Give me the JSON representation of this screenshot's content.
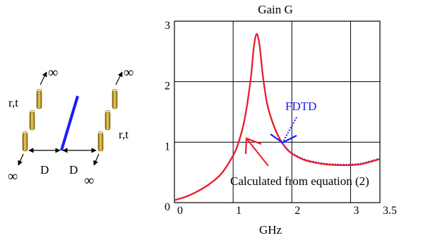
{
  "chart_data": {
    "type": "line",
    "title": "Gain G",
    "xlabel": "GHz",
    "ylabel": "",
    "xlim": [
      0,
      3.5
    ],
    "ylim": [
      0,
      3
    ],
    "xticks": [
      0,
      1,
      2,
      3,
      3.5
    ],
    "yticks": [
      0,
      1,
      2,
      3
    ],
    "grid": true,
    "series": [
      {
        "name": "FDTD",
        "color": "#1a1aff",
        "style": "dotted",
        "x": [
          0,
          0.2,
          0.4,
          0.6,
          0.8,
          1.0,
          1.1,
          1.2,
          1.3,
          1.35,
          1.4,
          1.45,
          1.5,
          1.55,
          1.6,
          1.7,
          1.8,
          1.9,
          2.0,
          2.2,
          2.4,
          2.6,
          2.8,
          3.0,
          3.2,
          3.5
        ],
        "y": [
          0.04,
          0.1,
          0.19,
          0.31,
          0.48,
          0.78,
          1.02,
          1.4,
          2.05,
          2.55,
          2.79,
          2.6,
          2.15,
          1.8,
          1.55,
          1.26,
          1.05,
          0.91,
          0.82,
          0.72,
          0.67,
          0.64,
          0.63,
          0.63,
          0.65,
          0.73
        ]
      },
      {
        "name": "Calculated from equation (2)",
        "color": "#ee1c24",
        "style": "solid",
        "x": [
          0,
          0.2,
          0.4,
          0.6,
          0.8,
          1.0,
          1.1,
          1.2,
          1.3,
          1.35,
          1.4,
          1.45,
          1.5,
          1.55,
          1.6,
          1.7,
          1.8,
          1.9,
          2.0,
          2.2,
          2.4,
          2.6,
          2.8,
          3.0,
          3.2,
          3.5
        ],
        "y": [
          0.04,
          0.1,
          0.19,
          0.31,
          0.48,
          0.78,
          1.02,
          1.4,
          2.05,
          2.55,
          2.79,
          2.6,
          2.15,
          1.8,
          1.55,
          1.25,
          1.04,
          0.9,
          0.81,
          0.71,
          0.66,
          0.63,
          0.62,
          0.62,
          0.64,
          0.72
        ]
      }
    ],
    "annotations": [
      {
        "text": "FDTD",
        "color": "#1a1aff",
        "x": 1.85,
        "y": 1.0
      },
      {
        "text": "Calculated from equation (2)",
        "color": "#000000",
        "x": 1.2,
        "y": 1.1
      }
    ]
  },
  "diagram": {
    "label_rt_left": "r,t",
    "label_rt_right": "r,t",
    "label_d_left": "D",
    "label_d_right": "D",
    "infinity": "∞",
    "element_color": "#c9a520",
    "dipole_color": "#1a1aff"
  }
}
